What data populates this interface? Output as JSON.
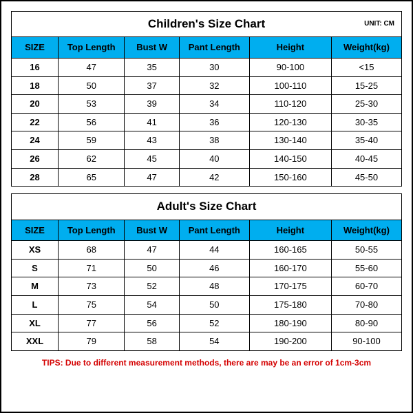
{
  "unit_label": "UNIT: CM",
  "columns": [
    "SIZE",
    "Top Length",
    "Bust W",
    "Pant Length",
    "Height",
    "Weight(kg)"
  ],
  "children": {
    "title": "Children's Size Chart",
    "rows": [
      [
        "16",
        "47",
        "35",
        "30",
        "90-100",
        "<15"
      ],
      [
        "18",
        "50",
        "37",
        "32",
        "100-110",
        "15-25"
      ],
      [
        "20",
        "53",
        "39",
        "34",
        "110-120",
        "25-30"
      ],
      [
        "22",
        "56",
        "41",
        "36",
        "120-130",
        "30-35"
      ],
      [
        "24",
        "59",
        "43",
        "38",
        "130-140",
        "35-40"
      ],
      [
        "26",
        "62",
        "45",
        "40",
        "140-150",
        "40-45"
      ],
      [
        "28",
        "65",
        "47",
        "42",
        "150-160",
        "45-50"
      ]
    ]
  },
  "adult": {
    "title": "Adult's Size Chart",
    "rows": [
      [
        "XS",
        "68",
        "47",
        "44",
        "160-165",
        "50-55"
      ],
      [
        "S",
        "71",
        "50",
        "46",
        "160-170",
        "55-60"
      ],
      [
        "M",
        "73",
        "52",
        "48",
        "170-175",
        "60-70"
      ],
      [
        "L",
        "75",
        "54",
        "50",
        "175-180",
        "70-80"
      ],
      [
        "XL",
        "77",
        "56",
        "52",
        "180-190",
        "80-90"
      ],
      [
        "XXL",
        "79",
        "58",
        "54",
        "190-200",
        "90-100"
      ]
    ]
  },
  "tips": "TIPS: Due to different measurement methods, there are may be an error of 1cm-3cm",
  "colors": {
    "header_bg": "#00aeef",
    "border": "#000000",
    "tips_color": "#d40000",
    "background": "#ffffff"
  }
}
